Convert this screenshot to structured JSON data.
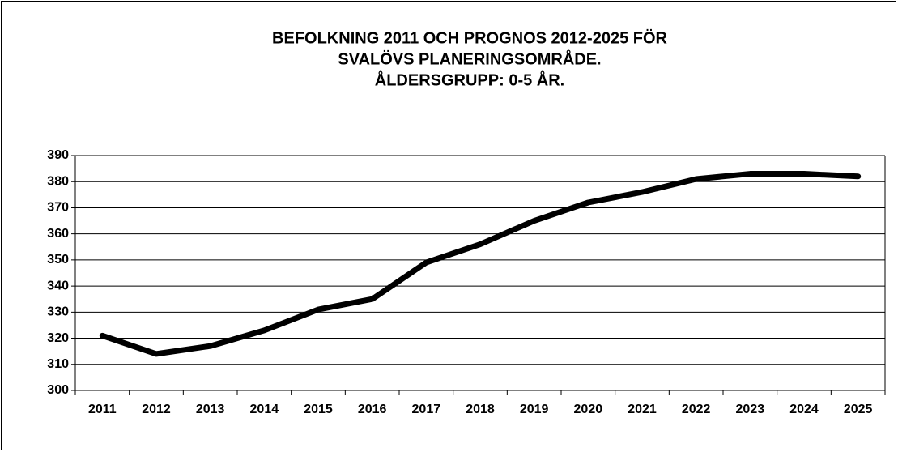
{
  "chart_data": {
    "type": "line",
    "title": [
      "BEFOLKNING 2011 OCH PROGNOS 2012-2025 FÖR",
      "SVALÖVS PLANERINGSOMRÅDE.",
      "ÅLDERSGRUPP: 0-5 ÅR."
    ],
    "categories": [
      "2011",
      "2012",
      "2013",
      "2014",
      "2015",
      "2016",
      "2017",
      "2018",
      "2019",
      "2020",
      "2021",
      "2022",
      "2023",
      "2024",
      "2025"
    ],
    "values": [
      321,
      314,
      317,
      323,
      331,
      335,
      349,
      356,
      365,
      372,
      376,
      381,
      383,
      383,
      382
    ],
    "color": "#000000",
    "ylim": [
      300,
      390
    ],
    "yticks": [
      300,
      310,
      320,
      330,
      340,
      350,
      360,
      370,
      380,
      390
    ],
    "grid": true
  }
}
